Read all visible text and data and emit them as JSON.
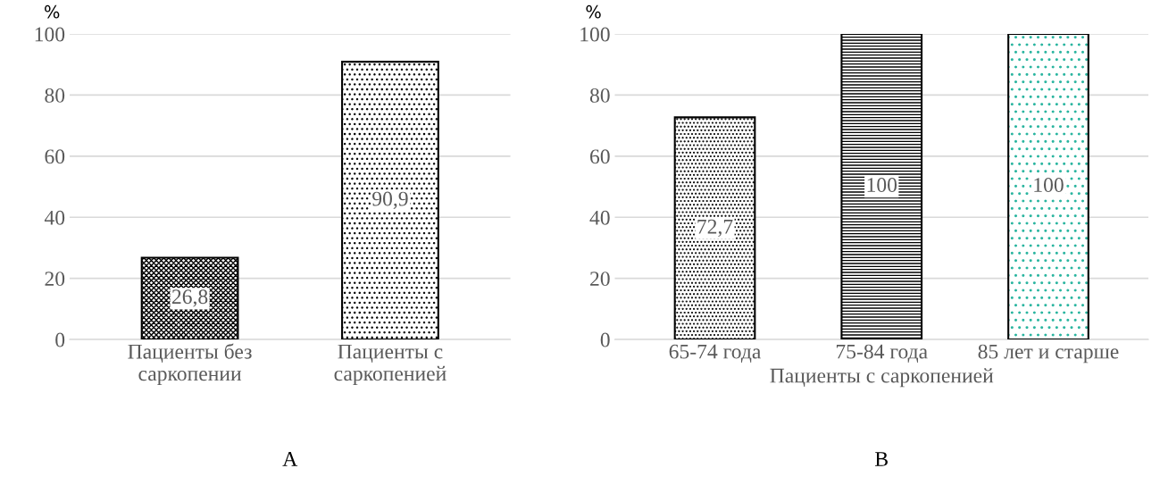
{
  "chart_data": [
    {
      "type": "bar",
      "ylabel": "%",
      "categories": [
        "Пациенты без саркопении",
        "Пациенты с саркопенией"
      ],
      "values": [
        26.8,
        90.9
      ],
      "colors": [
        "#000000",
        "#000000"
      ],
      "value_labels": [
        "26,8",
        "90,9"
      ],
      "ylim": [
        0,
        100
      ],
      "yticks": [
        0,
        20,
        40,
        60,
        80,
        100
      ],
      "grid": "y",
      "annotations": [
        "A"
      ]
    },
    {
      "type": "bar",
      "ylabel": "%",
      "xlabel": "Пациенты с саркопенией",
      "categories": [
        "65-74 года",
        "75-84 года",
        "85 лет и старше"
      ],
      "values": [
        72.7,
        100,
        100
      ],
      "colors": [
        "#000000",
        "#000000",
        "#2ab5a0"
      ],
      "value_labels": [
        "72,7",
        "100",
        "100"
      ],
      "ylim": [
        0,
        100
      ],
      "yticks": [
        0,
        20,
        40,
        60,
        80,
        100
      ],
      "grid": "y",
      "annotations": [
        "B"
      ]
    }
  ]
}
